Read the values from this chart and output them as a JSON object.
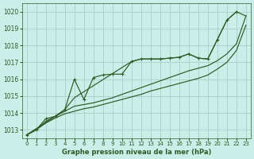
{
  "bg_color": "#cceee8",
  "grid_color": "#aad4cc",
  "line_color": "#2d5a27",
  "xlabel": "Graphe pression niveau de la mer (hPa)",
  "xlim": [
    -0.5,
    23.5
  ],
  "ylim": [
    1012.5,
    1020.5
  ],
  "yticks": [
    1013,
    1014,
    1015,
    1016,
    1017,
    1018,
    1019,
    1020
  ],
  "xticks": [
    0,
    1,
    2,
    3,
    4,
    5,
    6,
    7,
    8,
    9,
    10,
    11,
    12,
    13,
    14,
    15,
    16,
    17,
    18,
    19,
    20,
    21,
    22,
    23
  ],
  "line_marker": {
    "x": [
      0,
      1,
      2,
      3,
      4,
      5,
      6,
      7,
      8,
      9,
      10,
      11,
      12,
      13,
      14,
      15,
      16,
      17,
      18,
      19,
      20,
      21,
      22
    ],
    "y": [
      1012.7,
      1013.0,
      1013.65,
      1013.8,
      1014.2,
      1016.0,
      1014.8,
      1016.1,
      1016.25,
      1016.3,
      1016.3,
      1017.05,
      1017.2,
      1017.2,
      1017.2,
      1017.25,
      1017.3,
      1017.5,
      1017.25,
      1017.2,
      1018.35,
      1019.5,
      1020.0
    ]
  },
  "line_upper": {
    "x": [
      0,
      3,
      4,
      5,
      11,
      12,
      13,
      14,
      15,
      16,
      17,
      18,
      19,
      20,
      21,
      22,
      23
    ],
    "y": [
      1012.7,
      1013.8,
      1014.2,
      1014.9,
      1017.05,
      1017.2,
      1017.2,
      1017.2,
      1017.25,
      1017.3,
      1017.5,
      1017.25,
      1017.2,
      1018.35,
      1019.5,
      1020.0,
      1019.75
    ]
  },
  "line_mid": {
    "x": [
      0,
      1,
      2,
      3,
      4,
      5,
      6,
      7,
      8,
      9,
      10,
      11,
      12,
      13,
      14,
      15,
      16,
      17,
      18,
      19,
      20,
      21,
      22,
      23
    ],
    "y": [
      1012.7,
      1013.0,
      1013.5,
      1013.8,
      1014.1,
      1014.4,
      1014.5,
      1014.6,
      1014.75,
      1014.9,
      1015.1,
      1015.3,
      1015.5,
      1015.7,
      1015.9,
      1016.1,
      1016.3,
      1016.5,
      1016.65,
      1016.8,
      1017.1,
      1017.5,
      1018.1,
      1019.75
    ]
  },
  "line_low": {
    "x": [
      0,
      1,
      2,
      3,
      4,
      5,
      6,
      7,
      8,
      9,
      10,
      11,
      12,
      13,
      14,
      15,
      16,
      17,
      18,
      19,
      20,
      21,
      22,
      23
    ],
    "y": [
      1012.7,
      1013.0,
      1013.4,
      1013.7,
      1013.95,
      1014.1,
      1014.25,
      1014.35,
      1014.5,
      1014.65,
      1014.8,
      1014.95,
      1015.1,
      1015.3,
      1015.45,
      1015.6,
      1015.75,
      1015.9,
      1016.05,
      1016.25,
      1016.6,
      1017.0,
      1017.7,
      1019.2
    ]
  }
}
